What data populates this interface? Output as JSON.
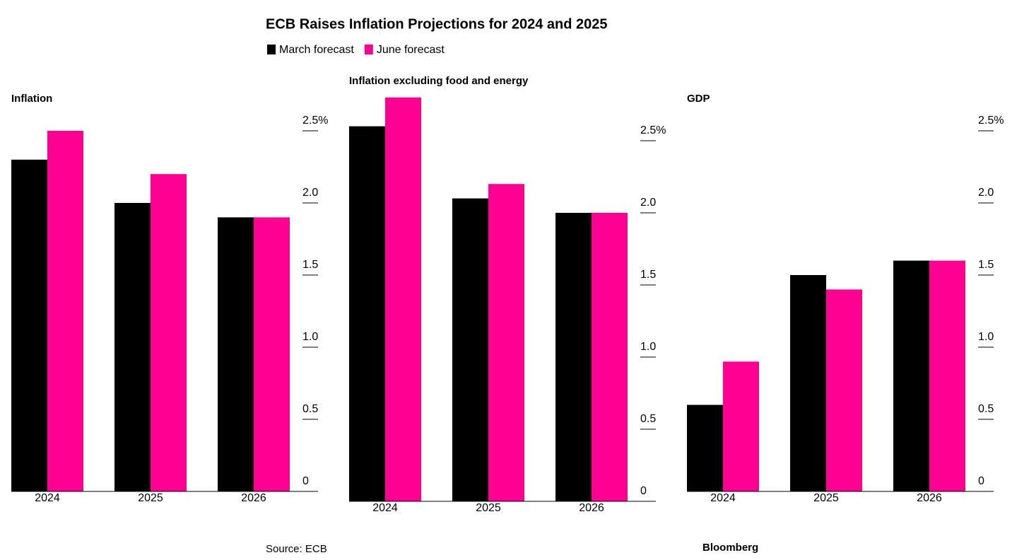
{
  "title": "ECB Raises Inflation Projections for 2024 and 2025",
  "source": "Source: ECB",
  "brand": "Bloomberg",
  "chart_data": [
    {
      "type": "bar",
      "title": "Inflation",
      "categories": [
        "2024",
        "2025",
        "2026"
      ],
      "series": [
        {
          "name": "March forecast",
          "color": "#000000",
          "values": [
            2.3,
            2.0,
            1.9
          ]
        },
        {
          "name": "June forecast",
          "color": "#ff0092",
          "values": [
            2.5,
            2.2,
            1.9
          ]
        }
      ],
      "ylim": [
        0,
        2.5
      ],
      "yticks": [
        0,
        0.5,
        {
          "value": 1,
          "label": "1.0"
        },
        1.5,
        {
          "value": 2,
          "label": "2.0"
        },
        {
          "value": 2.5,
          "label": "2.5%"
        }
      ]
    },
    {
      "type": "bar",
      "title": "Inflation excluding food and energy",
      "categories": [
        "2024",
        "2025",
        "2026"
      ],
      "series": [
        {
          "color": "#000000",
          "values": [
            2.6,
            2.1,
            2.0
          ]
        },
        {
          "color": "#ff0092",
          "values": [
            2.8,
            2.2,
            2.0
          ]
        }
      ],
      "ylim": [
        0,
        2.8
      ],
      "yticks": [
        0,
        0.5,
        {
          "value": 1,
          "label": "1.0"
        },
        1.5,
        {
          "value": 2,
          "label": "2.0"
        },
        {
          "value": 2.5,
          "label": "2.5%"
        }
      ]
    },
    {
      "type": "bar",
      "title": "GDP",
      "categories": [
        "2024",
        "2025",
        "2026"
      ],
      "series": [
        {
          "color": "#000000",
          "values": [
            0.6,
            1.5,
            1.6
          ]
        },
        {
          "color": "#ff0092",
          "values": [
            0.9,
            1.4,
            1.6
          ]
        }
      ],
      "ylim": [
        0,
        2.5
      ],
      "yticks": [
        0,
        0.5,
        {
          "value": 1,
          "label": "1.0"
        },
        1.5,
        {
          "value": 2,
          "label": "2.0"
        },
        {
          "value": 2.5,
          "label": "2.5%"
        }
      ]
    }
  ]
}
